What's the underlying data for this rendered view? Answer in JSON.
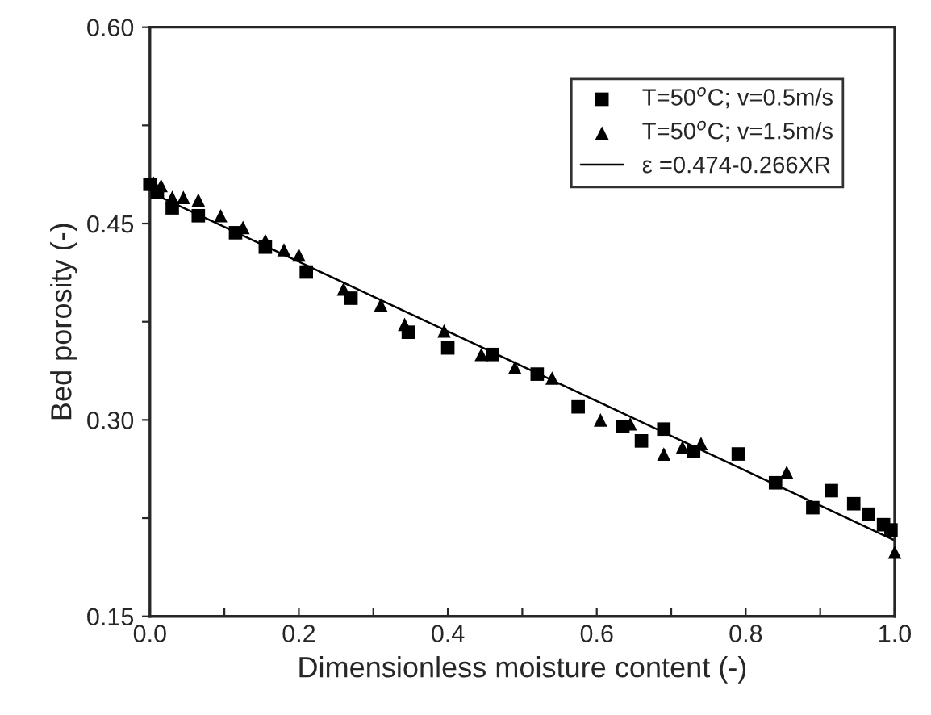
{
  "chart_data": {
    "type": "scatter",
    "xlabel": "Dimensionless moisture content (-)",
    "ylabel": "Bed porosity (-)",
    "xlim": [
      0.0,
      1.0
    ],
    "ylim": [
      0.15,
      0.6
    ],
    "xticks": [
      {
        "value": 0.0,
        "label": "0.0"
      },
      {
        "value": 0.1,
        "label": null
      },
      {
        "value": 0.2,
        "label": "0.2"
      },
      {
        "value": 0.3,
        "label": null
      },
      {
        "value": 0.4,
        "label": "0.4"
      },
      {
        "value": 0.5,
        "label": null
      },
      {
        "value": 0.6,
        "label": "0.6"
      },
      {
        "value": 0.7,
        "label": null
      },
      {
        "value": 0.8,
        "label": "0.8"
      },
      {
        "value": 0.9,
        "label": null
      },
      {
        "value": 1.0,
        "label": "1.0"
      }
    ],
    "yticks": [
      {
        "value": 0.15,
        "label": "0.15"
      },
      {
        "value": 0.225,
        "label": null
      },
      {
        "value": 0.3,
        "label": "0.30"
      },
      {
        "value": 0.375,
        "label": null
      },
      {
        "value": 0.45,
        "label": "0.45"
      },
      {
        "value": 0.525,
        "label": null
      },
      {
        "value": 0.6,
        "label": "0.60"
      }
    ],
    "grid": false,
    "legend": "top right",
    "series": [
      {
        "name": "T=50$^{o}$C; v=0.5m/s",
        "marker": "square",
        "color": "#000000",
        "x": [
          0.0,
          0.01,
          0.03,
          0.065,
          0.115,
          0.155,
          0.21,
          0.27,
          0.347,
          0.4,
          0.46,
          0.52,
          0.575,
          0.635,
          0.66,
          0.69,
          0.73,
          0.79,
          0.84,
          0.89,
          0.915,
          0.945,
          0.965,
          0.985,
          0.995
        ],
        "values": [
          0.48,
          0.474,
          0.462,
          0.456,
          0.443,
          0.432,
          0.413,
          0.393,
          0.367,
          0.355,
          0.35,
          0.335,
          0.31,
          0.295,
          0.284,
          0.293,
          0.276,
          0.274,
          0.252,
          0.233,
          0.246,
          0.236,
          0.228,
          0.22,
          0.216
        ]
      },
      {
        "name": "T=50$^{o}$C; v=1.5m/s",
        "marker": "triangle",
        "color": "#000000",
        "x": [
          0.005,
          0.015,
          0.03,
          0.045,
          0.065,
          0.095,
          0.125,
          0.155,
          0.18,
          0.2,
          0.26,
          0.31,
          0.342,
          0.395,
          0.445,
          0.49,
          0.54,
          0.605,
          0.645,
          0.69,
          0.715,
          0.74,
          0.855,
          1.0
        ],
        "values": [
          0.481,
          0.479,
          0.47,
          0.47,
          0.468,
          0.456,
          0.447,
          0.437,
          0.43,
          0.426,
          0.4,
          0.388,
          0.373,
          0.368,
          0.35,
          0.34,
          0.332,
          0.3,
          0.297,
          0.274,
          0.279,
          0.282,
          0.26,
          0.199
        ]
      },
      {
        "name": "ε =0.474-0.266XR",
        "type": "line",
        "marker": "none",
        "line_style": "solid",
        "color": "#000000",
        "x": [
          0.0,
          1.0
        ],
        "values": [
          0.474,
          0.208
        ]
      }
    ]
  }
}
